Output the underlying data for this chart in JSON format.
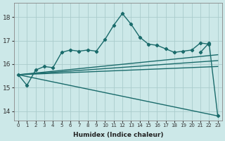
{
  "title": "",
  "xlabel": "Humidex (Indice chaleur)",
  "bg_color": "#cce8e8",
  "grid_color": "#aacccc",
  "line_color": "#1a6b6b",
  "xlim": [
    -0.5,
    23.5
  ],
  "ylim": [
    13.6,
    18.6
  ],
  "yticks": [
    14,
    15,
    16,
    17,
    18
  ],
  "xticks": [
    0,
    1,
    2,
    3,
    4,
    5,
    6,
    7,
    8,
    9,
    10,
    11,
    12,
    13,
    14,
    15,
    16,
    17,
    18,
    19,
    20,
    21,
    22,
    23
  ],
  "lines": [
    {
      "x": [
        0,
        1,
        2,
        3,
        4,
        5,
        6,
        7,
        8,
        9,
        10,
        11,
        12,
        13,
        14,
        15,
        16,
        17,
        18,
        19,
        20,
        21,
        22,
        23
      ],
      "y": [
        15.55,
        15.1,
        15.75,
        15.9,
        15.85,
        16.5,
        16.6,
        16.55,
        16.6,
        16.55,
        17.05,
        17.65,
        18.15,
        17.7,
        17.15,
        16.85,
        16.8,
        16.65,
        16.5,
        16.55,
        16.6,
        16.9,
        16.85,
        null
      ],
      "has_marker": true,
      "markersize": 2.2,
      "linewidth": 1.0
    },
    {
      "x": [
        0,
        23
      ],
      "y": [
        15.55,
        13.8
      ],
      "has_marker": false,
      "linewidth": 1.0
    },
    {
      "x": [
        0,
        23
      ],
      "y": [
        15.55,
        15.9
      ],
      "has_marker": false,
      "linewidth": 1.0
    },
    {
      "x": [
        0,
        23
      ],
      "y": [
        15.55,
        16.15
      ],
      "has_marker": false,
      "linewidth": 1.0
    },
    {
      "x": [
        0,
        23
      ],
      "y": [
        15.55,
        16.4
      ],
      "has_marker": false,
      "linewidth": 1.0
    },
    {
      "x": [
        21,
        22,
        23
      ],
      "y": [
        16.5,
        16.9,
        13.8
      ],
      "has_marker": true,
      "markersize": 2.2,
      "linewidth": 1.0
    }
  ]
}
